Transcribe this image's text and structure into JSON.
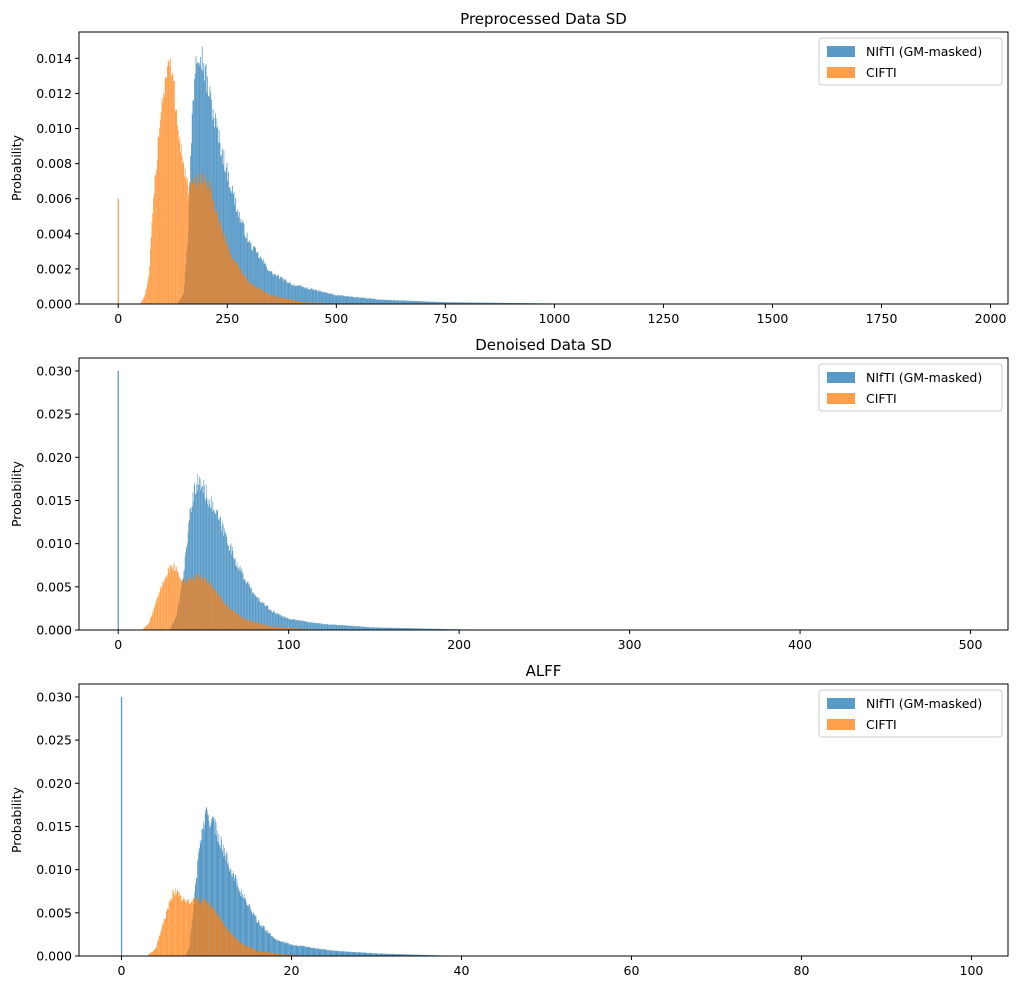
{
  "chart_data": [
    {
      "type": "histogram",
      "title": "Preprocessed Data SD",
      "xlabel": "",
      "ylabel": "Probability",
      "xlim": [
        -90,
        2040
      ],
      "ylim": [
        0,
        0.0155
      ],
      "xticks": [
        0,
        250,
        500,
        750,
        1000,
        1250,
        1500,
        1750,
        2000
      ],
      "yticks": [
        0.0,
        0.002,
        0.004,
        0.006,
        0.008,
        0.01,
        0.012,
        0.014
      ],
      "ytick_decimals": 3,
      "legend": "top-right",
      "series": [
        {
          "name": "NIfTI (GM-masked)",
          "color": "#1f77b4",
          "spike": null,
          "profile": [
            [
              0,
              0
            ],
            [
              135,
              0
            ],
            [
              150,
              0.0006
            ],
            [
              160,
              0.004
            ],
            [
              170,
              0.011
            ],
            [
              178,
              0.0143
            ],
            [
              185,
              0.0148
            ],
            [
              195,
              0.0138
            ],
            [
              210,
              0.0118
            ],
            [
              230,
              0.0095
            ],
            [
              250,
              0.0075
            ],
            [
              275,
              0.0052
            ],
            [
              300,
              0.0035
            ],
            [
              350,
              0.0018
            ],
            [
              400,
              0.0011
            ],
            [
              450,
              0.0008
            ],
            [
              500,
              0.0005
            ],
            [
              600,
              0.00025
            ],
            [
              750,
              0.0001
            ],
            [
              1000,
              3e-05
            ],
            [
              1100,
              0
            ]
          ]
        },
        {
          "name": "CIFTI",
          "color": "#ff7f0e",
          "spike": {
            "x": 0,
            "y": 0.006
          },
          "profile": [
            [
              0,
              0
            ],
            [
              50,
              0
            ],
            [
              60,
              0.0004
            ],
            [
              70,
              0.0015
            ],
            [
              80,
              0.0055
            ],
            [
              95,
              0.0105
            ],
            [
              110,
              0.0132
            ],
            [
              118,
              0.0137
            ],
            [
              128,
              0.0122
            ],
            [
              140,
              0.0096
            ],
            [
              150,
              0.0078
            ],
            [
              160,
              0.0066
            ],
            [
              175,
              0.0068
            ],
            [
              190,
              0.0073
            ],
            [
              210,
              0.0066
            ],
            [
              230,
              0.0048
            ],
            [
              260,
              0.0027
            ],
            [
              300,
              0.0012
            ],
            [
              350,
              0.0005
            ],
            [
              420,
              0.00012
            ],
            [
              500,
              0
            ]
          ]
        }
      ]
    },
    {
      "type": "histogram",
      "title": "Denoised Data SD",
      "xlabel": "",
      "ylabel": "Probability",
      "xlim": [
        -23,
        522
      ],
      "ylim": [
        0,
        0.0315
      ],
      "xticks": [
        0,
        100,
        200,
        300,
        400,
        500
      ],
      "yticks": [
        0.0,
        0.005,
        0.01,
        0.015,
        0.02,
        0.025,
        0.03
      ],
      "ytick_decimals": 3,
      "legend": "top-right",
      "series": [
        {
          "name": "NIfTI (GM-masked)",
          "color": "#1f77b4",
          "spike": {
            "x": 0,
            "y": 0.03
          },
          "profile": [
            [
              0,
              0
            ],
            [
              30,
              0
            ],
            [
              34,
              0.0015
            ],
            [
              38,
              0.006
            ],
            [
              42,
              0.013
            ],
            [
              46,
              0.0172
            ],
            [
              49,
              0.0168
            ],
            [
              55,
              0.0145
            ],
            [
              62,
              0.0115
            ],
            [
              70,
              0.0075
            ],
            [
              80,
              0.004
            ],
            [
              90,
              0.0022
            ],
            [
              100,
              0.0013
            ],
            [
              120,
              0.0007
            ],
            [
              150,
              0.0003
            ],
            [
              200,
              8e-05
            ],
            [
              220,
              0
            ]
          ]
        },
        {
          "name": "CIFTI",
          "color": "#ff7f0e",
          "spike": null,
          "profile": [
            [
              0,
              0
            ],
            [
              14,
              0
            ],
            [
              18,
              0.0008
            ],
            [
              22,
              0.003
            ],
            [
              27,
              0.006
            ],
            [
              31,
              0.0075
            ],
            [
              34,
              0.0072
            ],
            [
              38,
              0.0055
            ],
            [
              42,
              0.0058
            ],
            [
              47,
              0.0063
            ],
            [
              52,
              0.0058
            ],
            [
              58,
              0.0043
            ],
            [
              65,
              0.0025
            ],
            [
              75,
              0.0012
            ],
            [
              90,
              0.0004
            ],
            [
              110,
              0.0001
            ],
            [
              130,
              0
            ]
          ]
        }
      ]
    },
    {
      "type": "histogram",
      "title": "ALFF",
      "xlabel": "",
      "ylabel": "Probability",
      "xlim": [
        -5,
        104.3
      ],
      "ylim": [
        0,
        0.0315
      ],
      "xticks": [
        0,
        20,
        40,
        60,
        80,
        100
      ],
      "yticks": [
        0.0,
        0.005,
        0.01,
        0.015,
        0.02,
        0.025,
        0.03
      ],
      "ytick_decimals": 3,
      "legend": "top-right",
      "series": [
        {
          "name": "NIfTI (GM-masked)",
          "color": "#1f77b4",
          "spike": {
            "x": 0,
            "y": 0.03
          },
          "profile": [
            [
              0,
              0
            ],
            [
              7.5,
              0
            ],
            [
              8,
              0.001
            ],
            [
              8.5,
              0.006
            ],
            [
              9.2,
              0.013
            ],
            [
              10,
              0.0165
            ],
            [
              11,
              0.015
            ],
            [
              12.5,
              0.011
            ],
            [
              14,
              0.0075
            ],
            [
              16,
              0.004
            ],
            [
              18,
              0.002
            ],
            [
              20,
              0.0013
            ],
            [
              25,
              0.0006
            ],
            [
              30,
              0.0003
            ],
            [
              38,
              5e-05
            ],
            [
              40,
              0
            ]
          ]
        },
        {
          "name": "CIFTI",
          "color": "#ff7f0e",
          "spike": null,
          "profile": [
            [
              0,
              0
            ],
            [
              3,
              0
            ],
            [
              4,
              0.0008
            ],
            [
              5,
              0.004
            ],
            [
              6,
              0.0072
            ],
            [
              6.5,
              0.0075
            ],
            [
              7.5,
              0.0062
            ],
            [
              9,
              0.0065
            ],
            [
              10,
              0.0063
            ],
            [
              11,
              0.0052
            ],
            [
              12.5,
              0.003
            ],
            [
              14,
              0.0015
            ],
            [
              16,
              0.0006
            ],
            [
              19,
              0.0002
            ],
            [
              22,
              0
            ]
          ]
        }
      ]
    }
  ]
}
